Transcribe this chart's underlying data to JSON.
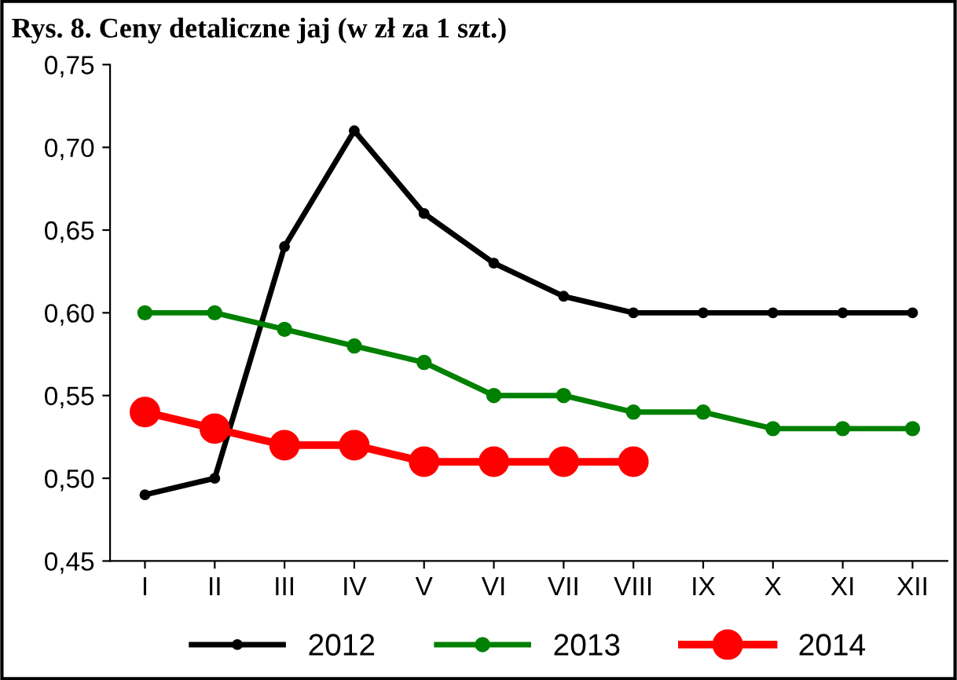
{
  "chart_data": {
    "type": "line",
    "title": "Rys. 8. Ceny detaliczne jaj (w zł za 1 szt.)",
    "categories": [
      "I",
      "II",
      "III",
      "IV",
      "V",
      "VI",
      "VII",
      "VIII",
      "IX",
      "X",
      "XI",
      "XII"
    ],
    "series": [
      {
        "name": "2012",
        "color": "#000000",
        "values": [
          0.49,
          0.5,
          0.64,
          0.71,
          0.66,
          0.63,
          0.61,
          0.6,
          0.6,
          0.6,
          0.6,
          0.6
        ]
      },
      {
        "name": "2013",
        "color": "#008000",
        "values": [
          0.6,
          0.6,
          0.59,
          0.58,
          0.57,
          0.55,
          0.55,
          0.54,
          0.54,
          0.53,
          0.53,
          0.53
        ]
      },
      {
        "name": "2014",
        "color": "#ff0000",
        "values": [
          0.54,
          0.53,
          0.52,
          0.52,
          0.51,
          0.51,
          0.51,
          0.51,
          null,
          null,
          null,
          null
        ]
      }
    ],
    "ylim": [
      0.45,
      0.75
    ],
    "yticks": [
      {
        "value": 0.45,
        "label": "0,45"
      },
      {
        "value": 0.5,
        "label": "0,50"
      },
      {
        "value": 0.55,
        "label": "0,55"
      },
      {
        "value": 0.6,
        "label": "0,60"
      },
      {
        "value": 0.65,
        "label": "0,65"
      },
      {
        "value": 0.7,
        "label": "0,70"
      },
      {
        "value": 0.75,
        "label": "0,75"
      }
    ],
    "grid": false,
    "legend": "bottom",
    "marker": "circle",
    "line_style": "solid"
  }
}
